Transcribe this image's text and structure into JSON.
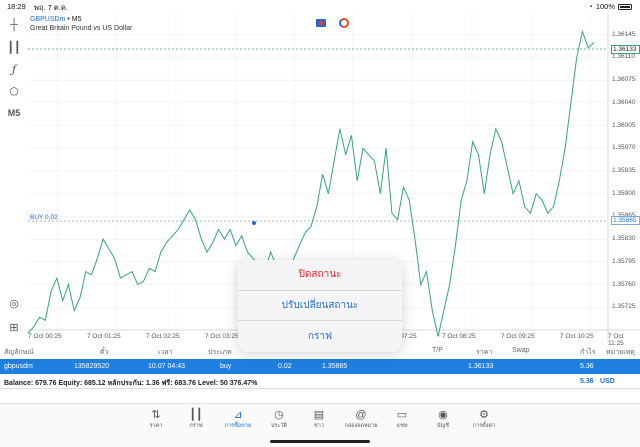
{
  "status": {
    "time": "18:29",
    "date": "พฤ. 7 ต.ค.",
    "battery": "100%"
  },
  "symbol": {
    "code": "GBPUSDm",
    "sep": "•",
    "timeframe": "M5",
    "description": "Great Britain Pound vs US Dollar"
  },
  "toolbar": {
    "timeframe_label": "M5"
  },
  "price_axis": [
    "1.36145",
    "1.36110",
    "1.36075",
    "1.36040",
    "1.36005",
    "1.35970",
    "1.35935",
    "1.35900",
    "1.35865",
    "1.35830",
    "1.35795",
    "1.35760",
    "1.35725"
  ],
  "current_price": "1.36133",
  "buy_price": "1.35865",
  "buy_marker": "BUY 0.02",
  "time_axis": [
    "7 Oct 00:25",
    "7 Oct 01:25",
    "7 Oct 02:25",
    "7 Oct 03:25",
    "7 Oct 07:25",
    "7 Oct 08:25",
    "7 Oct 09:25",
    "7 Oct 10:25",
    "7 Oct 11:25"
  ],
  "chart_data": {
    "type": "line",
    "series": [
      {
        "values": [
          1.35685,
          1.35695,
          1.3571,
          1.35705,
          1.3575,
          1.3577,
          1.35735,
          1.3576,
          1.3572,
          1.3574,
          1.3578,
          1.35775,
          1.358,
          1.3583,
          1.35815,
          1.358,
          1.3577,
          1.35775,
          1.3578,
          1.3576,
          1.35765,
          1.35785,
          1.3578,
          1.3581,
          1.35825,
          1.35835,
          1.35845,
          1.3586,
          1.35875,
          1.3586,
          1.3583,
          1.3581,
          1.35825,
          1.35845,
          1.3583,
          1.35845,
          1.3582,
          1.35835,
          1.3581,
          1.358,
          1.3579,
          1.3578,
          1.3581,
          1.3579,
          1.3578,
          1.3577,
          1.358,
          1.3582,
          1.3584,
          1.3585,
          1.3588,
          1.3593,
          1.359,
          1.3595,
          1.36,
          1.3596,
          1.3599,
          1.3592,
          1.3597,
          1.3596,
          1.3595,
          1.359,
          1.3597,
          1.3587,
          1.3586,
          1.3591,
          1.3589,
          1.3583,
          1.3576,
          1.3578,
          1.3572,
          1.3568,
          1.3572,
          1.3576,
          1.3582,
          1.3589,
          1.3592,
          1.3598,
          1.3596,
          1.359,
          1.3596,
          1.36,
          1.3598,
          1.3594,
          1.359,
          1.3592,
          1.3588,
          1.3587,
          1.359,
          1.3589,
          1.3587,
          1.3588,
          1.3592,
          1.3597,
          1.3604,
          1.3611,
          1.3615,
          1.36125,
          1.36133
        ]
      }
    ],
    "ylim": [
      1.3569,
      1.3618
    ],
    "grid": true
  },
  "popup": {
    "close": "ปิดสถานะ",
    "modify": "ปรับเปลี่ยนสถานะ",
    "chart": "กราฟ"
  },
  "positions_header": {
    "symbol": "สัญลักษณ์",
    "ticket": "ตั๋ว",
    "time": "เวลา",
    "type": "ประเภท",
    "tp": "T/P",
    "price": "ราคา",
    "swap": "Swap",
    "profit": "กำไร",
    "comment": "หมายเหตุ"
  },
  "position": {
    "symbol": "gbpusdm",
    "ticket": "135829520",
    "time": "10.07 04:43",
    "type": "buy",
    "volume": "0.02",
    "open_price": "1.35865",
    "current_price": "1.36133",
    "profit": "5.36"
  },
  "balance": {
    "text": "Balance: 679.76 Equity: 685.12 หลักประกัน: 1.36 ฟรี: 683.76 Level: 50 376.47%",
    "total": "5.36",
    "currency": "USD"
  },
  "tabs": [
    {
      "label": "ราคา",
      "icon": "quotes-icon"
    },
    {
      "label": "กราฟ",
      "icon": "chart-icon"
    },
    {
      "label": "การซื้อขาย",
      "icon": "trade-icon"
    },
    {
      "label": "ประวัติ",
      "icon": "history-icon"
    },
    {
      "label": "ข่าว",
      "icon": "news-icon"
    },
    {
      "label": "กล่องจดหมาย",
      "icon": "mailbox-icon"
    },
    {
      "label": "แชท",
      "icon": "chat-icon"
    },
    {
      "label": "บัญชี",
      "icon": "account-icon"
    },
    {
      "label": "การตั้งค่า",
      "icon": "settings-icon"
    }
  ],
  "colors": {
    "line": "#36a57a",
    "buy": "#1f6fcf",
    "row": "#1e7fe0",
    "danger": "#e0262b"
  }
}
